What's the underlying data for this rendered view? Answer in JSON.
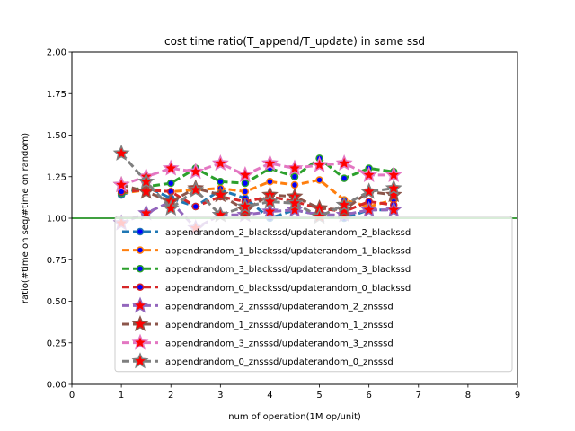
{
  "chart_data": {
    "type": "line",
    "title": "cost time ratio(T_append/T_update) in same ssd",
    "xlabel": "num of operation(1M op/unit)",
    "ylabel": "ratio(#time on seq/#time on random)",
    "xlim": [
      0,
      9
    ],
    "ylim": [
      0,
      2
    ],
    "xticks": [
      "0",
      "1",
      "2",
      "3",
      "4",
      "5",
      "6",
      "7",
      "8",
      "9"
    ],
    "yticks": [
      "0.00",
      "0.25",
      "0.50",
      "0.75",
      "1.00",
      "1.25",
      "1.50",
      "1.75",
      "2.00"
    ],
    "reference_line": {
      "y": 1.0,
      "color": "#008000"
    },
    "legend_position": "lower-right",
    "x": [
      1.0,
      1.5,
      2.0,
      2.5,
      3.0,
      3.5,
      4.0,
      4.5,
      5.0,
      5.5,
      6.0,
      6.5
    ],
    "series": [
      {
        "name": "appendrandom_2_blackssd/updaterandom_2_blackssd",
        "color": "#1f77b4",
        "marker": "circle",
        "values": [
          1.14,
          1.19,
          1.12,
          1.07,
          1.17,
          1.12,
          1.0,
          1.05,
          1.02,
          1.0,
          1.05,
          1.05
        ]
      },
      {
        "name": "appendrandom_1_blackssd/updaterandom_1_blackssd",
        "color": "#ff7f0e",
        "marker": "circle",
        "values": [
          1.15,
          1.17,
          1.16,
          1.17,
          1.18,
          1.16,
          1.22,
          1.2,
          1.23,
          1.11,
          1.07,
          1.11
        ]
      },
      {
        "name": "appendrandom_3_blackssd/updaterandom_3_blackssd",
        "color": "#2ca02c",
        "marker": "circle",
        "values": [
          1.15,
          1.19,
          1.21,
          1.3,
          1.22,
          1.21,
          1.3,
          1.25,
          1.36,
          1.24,
          1.3,
          1.28
        ]
      },
      {
        "name": "appendrandom_0_blackssd/updaterandom_0_blackssd",
        "color": "#d62728",
        "marker": "circle",
        "values": [
          1.16,
          1.17,
          1.16,
          1.07,
          1.13,
          1.1,
          1.13,
          1.1,
          1.06,
          1.04,
          1.1,
          1.08
        ]
      },
      {
        "name": "appendrandom_2_znsssd/updaterandom_2_znsssd",
        "color": "#9467bd",
        "marker": "star",
        "values": [
          0.97,
          1.03,
          1.1,
          0.94,
          1.02,
          1.02,
          1.04,
          1.05,
          1.02,
          1.02,
          1.05,
          1.05
        ]
      },
      {
        "name": "appendrandom_1_znsssd/updaterandom_1_znsssd",
        "color": "#8c564b",
        "marker": "star",
        "values": [
          1.2,
          1.16,
          1.1,
          1.18,
          1.14,
          1.05,
          1.14,
          1.13,
          1.06,
          1.05,
          1.16,
          1.14
        ]
      },
      {
        "name": "appendrandom_3_znsssd/updaterandom_3_znsssd",
        "color": "#e377c2",
        "marker": "star",
        "values": [
          1.2,
          1.25,
          1.3,
          1.28,
          1.33,
          1.26,
          1.33,
          1.3,
          1.32,
          1.33,
          1.26,
          1.26
        ]
      },
      {
        "name": "appendrandom_0_znsssd/updaterandom_0_znsssd",
        "color": "#7f7f7f",
        "marker": "star",
        "values": [
          1.39,
          1.22,
          1.06,
          1.17,
          1.02,
          1.07,
          1.1,
          1.09,
          1.01,
          1.08,
          1.16,
          1.18
        ]
      }
    ]
  }
}
